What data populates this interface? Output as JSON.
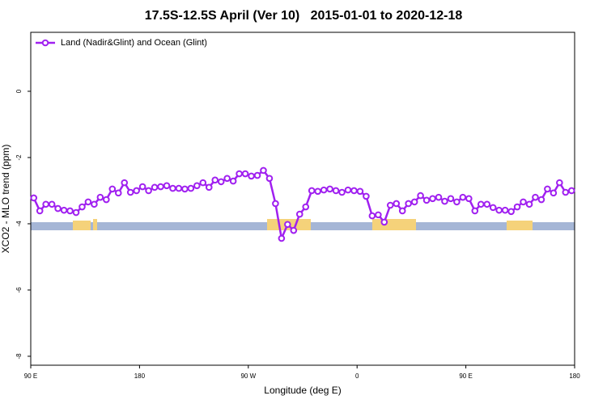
{
  "chart_data": {
    "type": "line",
    "title": "17.5S-12.5S April (Ver 10)   2015-01-01 to 2020-12-18",
    "x_label": "Longitude (deg E)",
    "y_label": "XCO2 - MLO trend (ppm)",
    "xlim": [
      90,
      540
    ],
    "ylim": [
      -8.27,
      1.78
    ],
    "xticks": [
      {
        "value": 90,
        "label": "90 E"
      },
      180,
      {
        "value": 270,
        "label": "90 W"
      },
      {
        "value": 360,
        "label": "0"
      },
      {
        "value": 450,
        "label": "90 E"
      },
      {
        "value": 540,
        "label": "180"
      }
    ],
    "yticks": [
      -8,
      -6,
      -4,
      -2,
      0
    ],
    "legend": "top-left",
    "x": [
      92.5,
      97.5,
      102.5,
      107.5,
      112.5,
      117.5,
      122.5,
      127.5,
      132.5,
      137.5,
      142.5,
      147.5,
      152.5,
      157.5,
      162.5,
      167.5,
      172.5,
      177.5,
      182.5,
      187.5,
      192.5,
      197.5,
      202.5,
      207.5,
      212.5,
      217.5,
      222.5,
      227.5,
      232.5,
      237.5,
      242.5,
      247.5,
      252.5,
      257.5,
      262.5,
      267.5,
      272.5,
      277.5,
      282.5,
      287.5,
      292.5,
      297.5,
      302.5,
      307.5,
      312.5,
      317.5,
      322.5,
      327.5,
      332.5,
      337.5,
      342.5,
      347.5,
      352.5,
      357.5,
      362.5,
      367.5,
      372.5,
      377.5,
      382.5,
      387.5,
      392.5,
      397.5,
      402.5,
      407.5,
      412.5,
      417.5,
      422.5,
      427.5,
      432.5,
      437.5,
      442.5,
      447.5,
      452.5,
      457.5,
      462.5,
      467.5,
      472.5,
      477.5,
      482.5,
      487.5,
      492.5,
      497.5,
      502.5,
      507.5,
      512.5,
      517.5,
      522.5,
      527.5,
      532.5,
      537.5
    ],
    "series": [
      {
        "name": "Land (Nadir&Glint) and Ocean (Glint)",
        "color": "#a020f0",
        "values": [
          -3.22,
          -3.61,
          -3.41,
          -3.41,
          -3.54,
          -3.59,
          -3.61,
          -3.66,
          -3.49,
          -3.34,
          -3.41,
          -3.2,
          -3.27,
          -2.95,
          -3.07,
          -2.76,
          -3.05,
          -3.0,
          -2.88,
          -3.0,
          -2.9,
          -2.88,
          -2.85,
          -2.93,
          -2.93,
          -2.95,
          -2.93,
          -2.85,
          -2.76,
          -2.9,
          -2.68,
          -2.73,
          -2.63,
          -2.71,
          -2.49,
          -2.49,
          -2.56,
          -2.54,
          -2.39,
          -2.63,
          -3.39,
          -4.44,
          -4.02,
          -4.2,
          -3.71,
          -3.49,
          -3.0,
          -3.02,
          -2.98,
          -2.95,
          -3.0,
          -3.05,
          -2.98,
          -3.0,
          -3.02,
          -3.17,
          -3.76,
          -3.73,
          -3.95,
          -3.44,
          -3.39,
          -3.61,
          -3.39,
          -3.34,
          -3.15,
          -3.29,
          -3.24,
          -3.2,
          -3.32,
          -3.24,
          -3.34,
          -3.2,
          -3.24,
          -3.61,
          -3.41,
          -3.41,
          -3.51,
          -3.59,
          -3.59,
          -3.63,
          -3.49,
          -3.34,
          -3.41,
          -3.2,
          -3.27,
          -2.95,
          -3.07,
          -2.76,
          -3.05,
          -3.0
        ]
      }
    ]
  }
}
